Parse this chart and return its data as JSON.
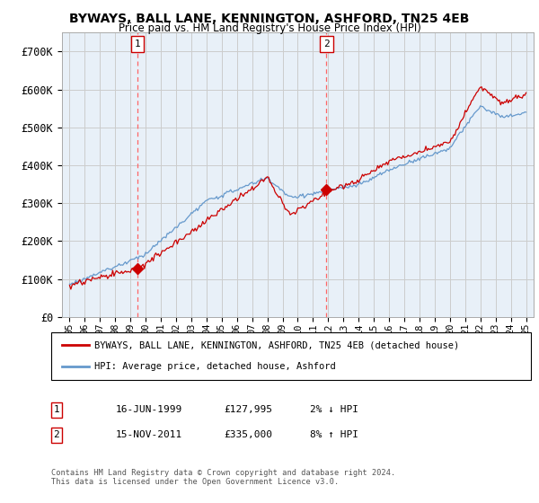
{
  "title": "BYWAYS, BALL LANE, KENNINGTON, ASHFORD, TN25 4EB",
  "subtitle": "Price paid vs. HM Land Registry's House Price Index (HPI)",
  "legend_line1": "BYWAYS, BALL LANE, KENNINGTON, ASHFORD, TN25 4EB (detached house)",
  "legend_line2": "HPI: Average price, detached house, Ashford",
  "annotation1_date": "16-JUN-1999",
  "annotation1_price": "£127,995",
  "annotation1_hpi": "2% ↓ HPI",
  "annotation1_year": 1999.46,
  "annotation1_value": 127995,
  "annotation2_date": "15-NOV-2011",
  "annotation2_price": "£335,000",
  "annotation2_hpi": "8% ↑ HPI",
  "annotation2_year": 2011.88,
  "annotation2_value": 335000,
  "ylim": [
    0,
    750000
  ],
  "yticks": [
    0,
    100000,
    200000,
    300000,
    400000,
    500000,
    600000,
    700000
  ],
  "ytick_labels": [
    "£0",
    "£100K",
    "£200K",
    "£300K",
    "£400K",
    "£500K",
    "£600K",
    "£700K"
  ],
  "xlim_start": 1994.5,
  "xlim_end": 2025.5,
  "background_color": "#ffffff",
  "plot_bg_color": "#e8f0f8",
  "grid_color": "#cccccc",
  "hpi_line_color": "#6699cc",
  "price_line_color": "#cc0000",
  "annotation_line_color": "#ff6666",
  "shade_color": "#dce8f5",
  "footer": "Contains HM Land Registry data © Crown copyright and database right 2024.\nThis data is licensed under the Open Government Licence v3.0."
}
